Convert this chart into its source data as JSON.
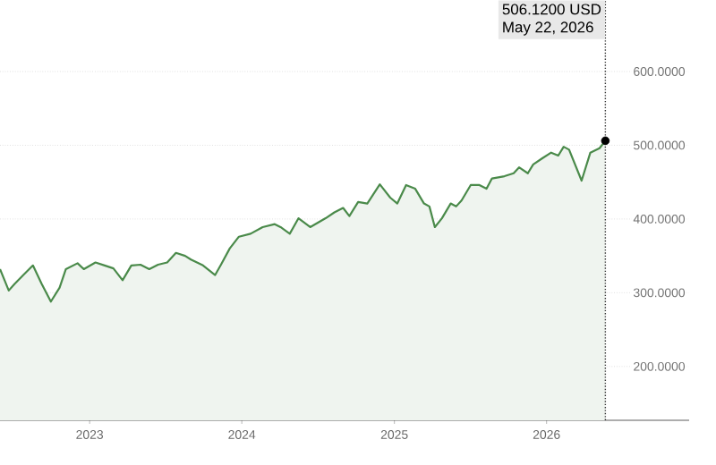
{
  "chart_data": {
    "type": "area",
    "x": [
      "2022-05-31",
      "2022-06-21",
      "2022-07-05",
      "2022-07-26",
      "2022-08-18",
      "2022-09-08",
      "2022-09-30",
      "2022-10-21",
      "2022-11-05",
      "2022-12-03",
      "2022-12-18",
      "2023-01-15",
      "2023-02-06",
      "2023-02-27",
      "2023-03-21",
      "2023-04-11",
      "2023-05-03",
      "2023-05-24",
      "2023-06-14",
      "2023-07-06",
      "2023-07-27",
      "2023-08-18",
      "2023-09-01",
      "2023-09-30",
      "2023-10-29",
      "2023-11-12",
      "2023-12-03",
      "2023-12-25",
      "2024-01-22",
      "2024-02-20",
      "2024-03-20",
      "2024-04-03",
      "2024-04-25",
      "2024-05-16",
      "2024-06-13",
      "2024-07-20",
      "2024-08-10",
      "2024-08-31",
      "2024-09-15",
      "2024-10-06",
      "2024-10-28",
      "2024-11-27",
      "2024-12-22",
      "2025-01-08",
      "2025-01-29",
      "2025-02-20",
      "2025-03-13",
      "2025-03-26",
      "2025-04-08",
      "2025-04-25",
      "2025-05-16",
      "2025-05-29",
      "2025-06-11",
      "2025-07-03",
      "2025-07-24",
      "2025-08-10",
      "2025-08-23",
      "2025-09-22",
      "2025-10-14",
      "2025-10-27",
      "2025-11-17",
      "2025-11-30",
      "2025-12-21",
      "2026-01-12",
      "2026-01-29",
      "2026-02-11",
      "2026-02-24",
      "2026-03-26",
      "2026-04-16",
      "2026-05-08",
      "2026-05-22"
    ],
    "series": [
      {
        "color": "#4a8a4a",
        "values": [
          332,
          303,
          312,
          324,
          337,
          312,
          288,
          307,
          332,
          340,
          332,
          341,
          337,
          333,
          317,
          337,
          338,
          332,
          338,
          341,
          354,
          350,
          345,
          337,
          324,
          338,
          360,
          376,
          380,
          389,
          393,
          389,
          380,
          401,
          389,
          401,
          409,
          415,
          404,
          423,
          421,
          447,
          429,
          421,
          446,
          441,
          421,
          417,
          389,
          401,
          421,
          417,
          425,
          446,
          446,
          441,
          455,
          458,
          462,
          470,
          462,
          474,
          482,
          490,
          486,
          498,
          494,
          452,
          490,
          496,
          506.12
        ]
      },
      {
        "type": "scatter",
        "color": "#000000",
        "x": [
          "2026-05-22"
        ],
        "values": [
          506.12
        ]
      }
    ],
    "xlim": [
      "2022-05-31",
      "2026-12-09"
    ],
    "ylim": [
      127,
      697
    ],
    "xticks": [
      "2023",
      "2024",
      "2025",
      "2026"
    ],
    "yticks": [
      {
        "value": 200,
        "label": "200.0000"
      },
      {
        "value": 300,
        "label": "300.0000"
      },
      {
        "value": 400,
        "label": "400.0000"
      },
      {
        "value": 500,
        "label": "500.0000"
      },
      {
        "value": 600,
        "label": "600.0000"
      }
    ],
    "grid": "y",
    "ref_lines": [
      {
        "axis": "x",
        "value": "2026-05-22",
        "line_style": "dotted",
        "color": "#333333"
      }
    ],
    "annotations": [
      "506.1200 USD",
      "May 22, 2026"
    ]
  }
}
